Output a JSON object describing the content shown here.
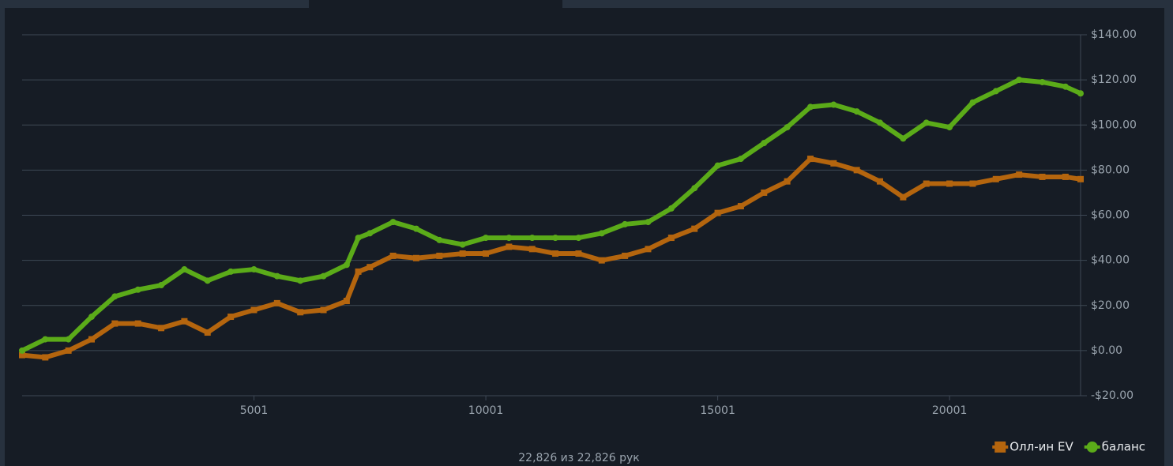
{
  "chart_data": {
    "type": "line",
    "footer": "22,826 из 22,826 рук",
    "x": [
      1,
      500,
      1000,
      1500,
      2000,
      2500,
      3000,
      3500,
      4000,
      4500,
      5000,
      5500,
      6000,
      6500,
      7000,
      7250,
      7500,
      8000,
      8500,
      9000,
      9500,
      10000,
      10500,
      11000,
      11500,
      12000,
      12500,
      13000,
      13500,
      14000,
      14500,
      15000,
      15500,
      16000,
      16500,
      17000,
      17500,
      18000,
      18500,
      19000,
      19500,
      20000,
      20500,
      21000,
      21500,
      22000,
      22500,
      22826
    ],
    "series": [
      {
        "name": "Олл-ин EV",
        "color": "#b4650e",
        "marker": "square",
        "values": [
          -2,
          -3,
          0,
          5,
          12,
          12,
          10,
          13,
          8,
          15,
          18,
          21,
          17,
          18,
          22,
          35,
          37,
          42,
          41,
          42,
          43,
          43,
          46,
          45,
          43,
          43,
          40,
          42,
          45,
          50,
          54,
          61,
          64,
          70,
          75,
          85,
          83,
          80,
          75,
          68,
          74,
          74,
          74,
          76,
          78,
          77,
          77,
          76
        ]
      },
      {
        "name": "баланс",
        "color": "#5bab19",
        "marker": "circle",
        "values": [
          0,
          5,
          5,
          15,
          24,
          27,
          29,
          36,
          31,
          35,
          36,
          33,
          31,
          33,
          38,
          50,
          52,
          57,
          54,
          49,
          47,
          50,
          50,
          50,
          50,
          50,
          52,
          56,
          57,
          63,
          72,
          82,
          85,
          92,
          99,
          108,
          109,
          106,
          101,
          94,
          101,
          99,
          110,
          115,
          120,
          119,
          117,
          114
        ]
      }
    ],
    "xlim": [
      1,
      22826
    ],
    "xticks": [
      5001,
      10001,
      15001,
      20001
    ],
    "ylim": [
      -20,
      140
    ],
    "yticks": [
      {
        "value": -20,
        "label": "-$20.00"
      },
      {
        "value": 0,
        "label": "$0.00"
      },
      {
        "value": 20,
        "label": "$20.00"
      },
      {
        "value": 40,
        "label": "$40.00"
      },
      {
        "value": 60,
        "label": "$60.00"
      },
      {
        "value": 80,
        "label": "$80.00"
      },
      {
        "value": 100,
        "label": "$100.00"
      },
      {
        "value": 120,
        "label": "$120.00"
      },
      {
        "value": 140,
        "label": "$140.00"
      }
    ],
    "grid": true,
    "legend": "bottom-right"
  }
}
